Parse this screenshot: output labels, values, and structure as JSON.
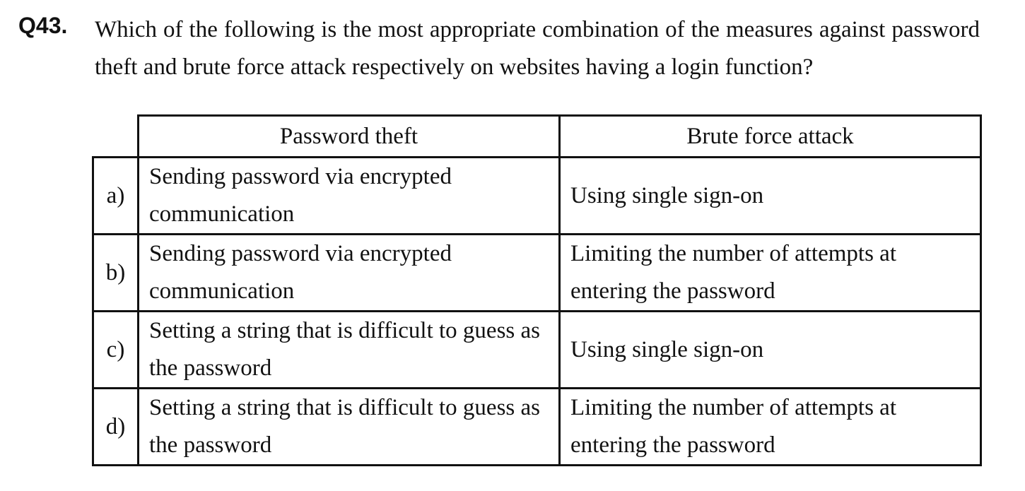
{
  "question": {
    "number": "Q43.",
    "text": "Which of the following is the most appropriate combination of the measures against password theft and brute force attack respectively on websites having a login function?"
  },
  "table": {
    "headers": [
      "Password theft",
      "Brute force attack"
    ],
    "rows": [
      {
        "letter": "a)",
        "password_theft": "Sending password via encrypted communication",
        "brute_force": "Using single sign-on"
      },
      {
        "letter": "b)",
        "password_theft": "Sending password via encrypted communication",
        "brute_force": "Limiting the number of attempts at entering the password"
      },
      {
        "letter": "c)",
        "password_theft": "Setting a string that is difficult to guess as the password",
        "brute_force": "Using single sign-on"
      },
      {
        "letter": "d)",
        "password_theft": "Setting a string that is difficult to guess as the password",
        "brute_force": "Limiting the number of attempts at entering the password"
      }
    ]
  }
}
